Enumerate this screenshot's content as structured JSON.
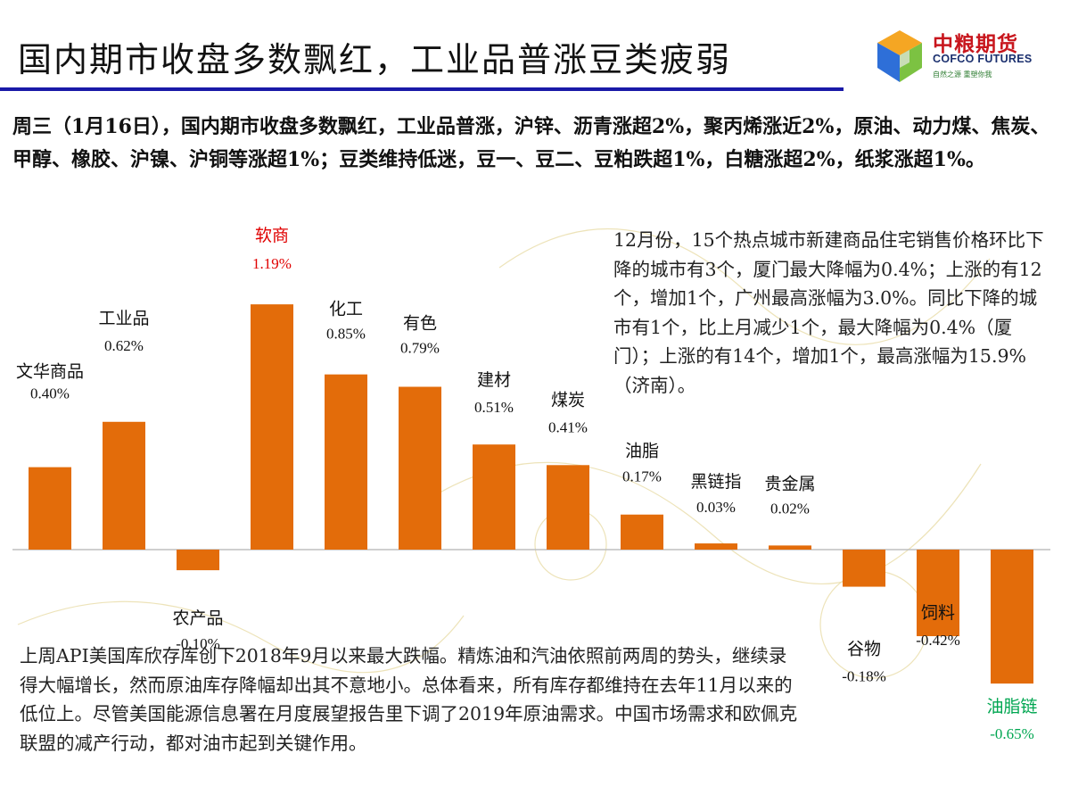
{
  "header": {
    "title": "国内期市收盘多数飘红，工业品普涨豆类疲弱",
    "logo_cn": "中粮期货",
    "logo_en": "COFCO FUTURES",
    "logo_slogan": "自然之源 重塑你我"
  },
  "summary": "周三（1月16日），国内期市收盘多数飘红，工业品普涨，沪锌、沥青涨超2%，聚丙烯涨近2%，原油、动力煤、焦炭、甲醇、橡胶、沪镍、沪铜等涨超1%；豆类维持低迷，豆一、豆二、豆粕跌超1%，白糖涨超2%，纸浆涨超1%。",
  "notes": {
    "housing": "12月份，15个热点城市新建商品住宅销售价格环比下降的城市有3个，厦门最大降幅为0.4%；上涨的有12个，增加1个，广州最高涨幅为3.0%。同比下降的城市有1个，比上月减少1个，最大降幅为0.4%（厦门）；上涨的有14个，增加1个，最高涨幅为15.9%（济南）。",
    "oil": "上周API美国库欣存库创下2018年9月以来最大跌幅。精炼油和汽油依照前两周的势头，继续录得大幅增长，然而原油库存降幅却出其不意地小。总体看来，所有库存都维持在去年11月以来的低位上。尽管美国能源信息署在月度展望报告里下调了2019年原油需求。中国市场需求和欧佩克联盟的减产行动，都对油市起到关键作用。"
  },
  "colors": {
    "bar": "#e36c0a",
    "highlight_max": "#e00000",
    "highlight_min": "#00a651",
    "axis": "#bfbfbf",
    "rule": "#1a1aa8"
  },
  "chart_data": {
    "type": "bar",
    "title": "",
    "xlabel": "",
    "ylabel": "",
    "unit": "%",
    "ylim": [
      -0.65,
      1.19
    ],
    "categories": [
      "文华商品",
      "工业品",
      "农产品",
      "软商",
      "化工",
      "有色",
      "建材",
      "煤炭",
      "油脂",
      "黑链指",
      "贵金属",
      "谷物",
      "饲料",
      "油脂链"
    ],
    "values": [
      0.4,
      0.62,
      -0.1,
      1.19,
      0.85,
      0.79,
      0.51,
      0.41,
      0.17,
      0.03,
      0.02,
      -0.18,
      -0.42,
      -0.65
    ],
    "value_labels": [
      "0.40%",
      "0.62%",
      "-0.10%",
      "1.19%",
      "0.85%",
      "0.79%",
      "0.51%",
      "0.41%",
      "0.17%",
      "0.03%",
      "0.02%",
      "-0.18%",
      "-0.42%",
      "-0.65%"
    ],
    "highlight": {
      "max_index": 3,
      "min_index": 13
    }
  }
}
